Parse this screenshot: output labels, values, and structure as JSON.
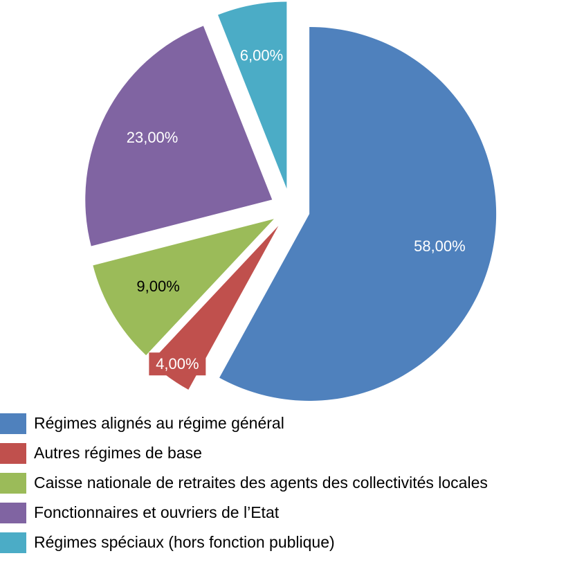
{
  "chart_data": {
    "type": "pie",
    "exploded": true,
    "start_angle_deg": 0,
    "direction": "clockwise",
    "slices": [
      {
        "label": "Régimes alignés au régime général",
        "value": 58.0,
        "data_label": "58,00%",
        "color": "#4F81BD",
        "label_color": "#ffffff"
      },
      {
        "label": "Autres régimes de base",
        "value": 4.0,
        "data_label": "4,00%",
        "color": "#C0504D",
        "label_color": "#ffffff"
      },
      {
        "label": "Caisse nationale de retraites des agents des collectivités locales",
        "value": 9.0,
        "data_label": "9,00%",
        "color": "#9BBB59",
        "label_color": "#000000"
      },
      {
        "label": "Fonctionnaires et ouvriers de l’Etat",
        "value": 23.0,
        "data_label": "23,00%",
        "color": "#8064A2",
        "label_color": "#ffffff"
      },
      {
        "label": "Régimes spéciaux (hors fonction publique)",
        "value": 6.0,
        "data_label": "6,00%",
        "color": "#4BACC6",
        "label_color": "#ffffff"
      }
    ],
    "legend_position": "bottom-left"
  }
}
